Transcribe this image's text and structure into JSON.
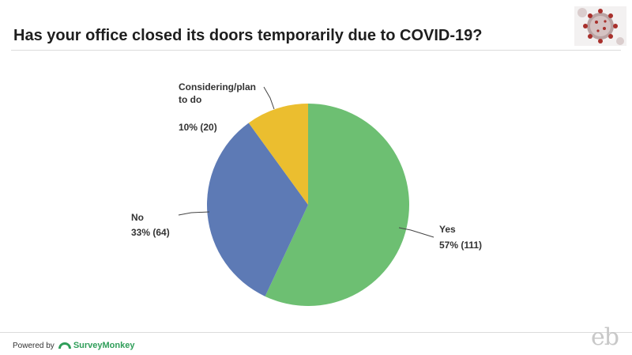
{
  "title": "Has your office closed its doors temporarily due to COVID-19?",
  "footer": {
    "powered_by": "Powered by",
    "brand": "SurveyMonkey",
    "monogram": "eb"
  },
  "icons": {
    "corner_image": "coronavirus-icon",
    "brand_logo": "surveymonkey-logo-icon"
  },
  "chart_data": {
    "type": "pie",
    "title": "Has your office closed its doors temporarily due to COVID-19?",
    "start_angle_deg": 0,
    "direction": "clockwise",
    "slices": [
      {
        "label": "Yes",
        "percent": 57,
        "count": 111,
        "value_label": "57% (111)",
        "color": "#6dbf72"
      },
      {
        "label": "No",
        "percent": 33,
        "count": 64,
        "value_label": "33% (64)",
        "color": "#5d7ab5"
      },
      {
        "label": "Considering/plan to do",
        "label_lines": [
          "Considering/plan",
          "to do"
        ],
        "percent": 10,
        "count": 20,
        "value_label": "10% (20)",
        "color": "#ebbe2f"
      }
    ]
  }
}
